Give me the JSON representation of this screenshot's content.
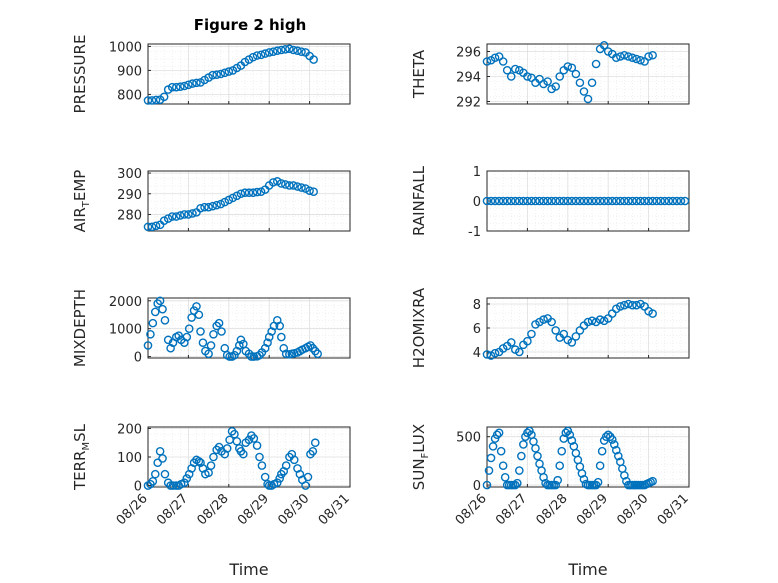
{
  "figure": {
    "title": "Figure 2 high"
  },
  "chart_data": [
    {
      "type": "scatter",
      "id": "pressure",
      "ylabel": {
        "base": "PRESSURE"
      },
      "ylim": [
        760,
        1010
      ],
      "yticks": [
        "800",
        "900",
        "1000"
      ],
      "ytick_values": [
        800,
        900,
        1000
      ],
      "xlim": [
        0,
        5
      ],
      "xticks": [],
      "series": [
        {
          "x": [
            0,
            0.1,
            0.2,
            0.3,
            0.4,
            0.5,
            0.6,
            0.7,
            0.8,
            0.9,
            1.0,
            1.1,
            1.2,
            1.3,
            1.4,
            1.5,
            1.6,
            1.7,
            1.8,
            1.9,
            2.0,
            2.1,
            2.2,
            2.3,
            2.4,
            2.5,
            2.6,
            2.7,
            2.8,
            2.9,
            3.0,
            3.1,
            3.2,
            3.3,
            3.4,
            3.5,
            3.6,
            3.7,
            3.8,
            3.9,
            4.0,
            4.1
          ],
          "y": [
            775,
            775,
            777,
            778,
            790,
            820,
            830,
            830,
            832,
            835,
            840,
            845,
            848,
            850,
            860,
            870,
            880,
            882,
            885,
            890,
            895,
            900,
            910,
            920,
            935,
            945,
            955,
            962,
            965,
            970,
            975,
            978,
            982,
            985,
            988,
            990,
            985,
            982,
            978,
            975,
            960,
            945
          ]
        }
      ],
      "grid": true,
      "minor_grid": true
    },
    {
      "type": "scatter",
      "id": "theta",
      "ylabel": {
        "base": "THETA"
      },
      "ylim": [
        291.8,
        296.6
      ],
      "yticks": [
        "292",
        "294",
        "296"
      ],
      "ytick_values": [
        292,
        294,
        296
      ],
      "xlim": [
        0,
        5
      ],
      "xticks": [],
      "series": [
        {
          "x": [
            0,
            0.1,
            0.2,
            0.3,
            0.4,
            0.5,
            0.6,
            0.7,
            0.8,
            0.9,
            1.0,
            1.1,
            1.2,
            1.3,
            1.4,
            1.5,
            1.6,
            1.7,
            1.8,
            1.9,
            2.0,
            2.1,
            2.2,
            2.3,
            2.4,
            2.5,
            2.6,
            2.7,
            2.8,
            2.9,
            3.0,
            3.1,
            3.2,
            3.3,
            3.4,
            3.5,
            3.6,
            3.7,
            3.8,
            3.9,
            4.0,
            4.1
          ],
          "y": [
            295.2,
            295.3,
            295.5,
            295.6,
            295.2,
            294.5,
            294.0,
            294.6,
            294.5,
            294.3,
            294.0,
            293.9,
            293.5,
            293.8,
            293.4,
            293.6,
            293.0,
            293.2,
            294.0,
            294.5,
            294.8,
            294.7,
            294.2,
            293.5,
            292.8,
            292.2,
            293.5,
            295.0,
            296.2,
            296.5,
            296.0,
            295.8,
            295.5,
            295.6,
            295.7,
            295.6,
            295.5,
            295.4,
            295.3,
            295.2,
            295.6,
            295.7
          ]
        }
      ],
      "grid": true,
      "minor_grid": true
    },
    {
      "type": "scatter",
      "id": "air_temp",
      "ylabel": {
        "base": "AIR",
        "sub": "T",
        "rest": "EMP"
      },
      "ylim": [
        272,
        301
      ],
      "yticks": [
        "280",
        "290",
        "300"
      ],
      "ytick_values": [
        280,
        290,
        300
      ],
      "xlim": [
        0,
        5
      ],
      "xticks": [],
      "series": [
        {
          "x": [
            0,
            0.1,
            0.2,
            0.3,
            0.4,
            0.5,
            0.6,
            0.7,
            0.8,
            0.9,
            1.0,
            1.1,
            1.2,
            1.3,
            1.4,
            1.5,
            1.6,
            1.7,
            1.8,
            1.9,
            2.0,
            2.1,
            2.2,
            2.3,
            2.4,
            2.5,
            2.6,
            2.7,
            2.8,
            2.9,
            3.0,
            3.1,
            3.2,
            3.3,
            3.4,
            3.5,
            3.6,
            3.7,
            3.8,
            3.9,
            4.0,
            4.1
          ],
          "y": [
            274,
            274,
            274.5,
            275,
            277,
            278,
            279,
            279,
            279.5,
            280,
            280,
            280.5,
            281,
            283,
            283.5,
            283.5,
            284,
            284.5,
            285,
            286,
            287,
            288,
            289,
            290,
            290.5,
            290.5,
            290.5,
            290.8,
            291,
            292,
            294,
            295.5,
            296,
            295,
            294.5,
            294,
            294,
            293.5,
            293,
            292.5,
            291.5,
            291
          ]
        }
      ],
      "grid": true,
      "minor_grid": true
    },
    {
      "type": "scatter",
      "id": "rainfall",
      "ylabel": {
        "base": "RAINFALL"
      },
      "ylim": [
        -1,
        1
      ],
      "yticks": [
        "-1",
        "0",
        "1"
      ],
      "ytick_values": [
        -1,
        0,
        1
      ],
      "xlim": [
        0,
        5
      ],
      "xticks": [],
      "series": [
        {
          "x": [
            0,
            0.1,
            0.2,
            0.3,
            0.4,
            0.5,
            0.6,
            0.7,
            0.8,
            0.9,
            1.0,
            1.1,
            1.2,
            1.3,
            1.4,
            1.5,
            1.6,
            1.7,
            1.8,
            1.9,
            2.0,
            2.1,
            2.2,
            2.3,
            2.4,
            2.5,
            2.6,
            2.7,
            2.8,
            2.9,
            3.0,
            3.1,
            3.2,
            3.3,
            3.4,
            3.5,
            3.6,
            3.7,
            3.8,
            3.9,
            4.0,
            4.1,
            4.2,
            4.3,
            4.4,
            4.5,
            4.6,
            4.7,
            4.8,
            4.9
          ],
          "y": [
            0,
            0,
            0,
            0,
            0,
            0,
            0,
            0,
            0,
            0,
            0,
            0,
            0,
            0,
            0,
            0,
            0,
            0,
            0,
            0,
            0,
            0,
            0,
            0,
            0,
            0,
            0,
            0,
            0,
            0,
            0,
            0,
            0,
            0,
            0,
            0,
            0,
            0,
            0,
            0,
            0,
            0,
            0,
            0,
            0,
            0,
            0,
            0,
            0,
            0
          ]
        }
      ],
      "grid": true,
      "minor_grid": true
    },
    {
      "type": "scatter",
      "id": "mixdepth",
      "ylabel": {
        "base": "MIXDEPTH"
      },
      "ylim": [
        -50,
        2100
      ],
      "yticks": [
        "0",
        "1000",
        "2000"
      ],
      "ytick_values": [
        0,
        1000,
        2000
      ],
      "xlim": [
        0,
        5
      ],
      "xticks": [],
      "series": [
        {
          "x": [
            0,
            0.06,
            0.12,
            0.18,
            0.24,
            0.3,
            0.36,
            0.42,
            0.5,
            0.56,
            0.62,
            0.7,
            0.76,
            0.82,
            0.9,
            0.96,
            1.02,
            1.08,
            1.14,
            1.2,
            1.26,
            1.3,
            1.36,
            1.42,
            1.5,
            1.56,
            1.62,
            1.7,
            1.76,
            1.82,
            1.9,
            1.96,
            2.02,
            2.08,
            2.14,
            2.2,
            2.26,
            2.3,
            2.36,
            2.42,
            2.5,
            2.56,
            2.62,
            2.7,
            2.76,
            2.82,
            2.9,
            2.96,
            3.0,
            3.06,
            3.12,
            3.2,
            3.26,
            3.3,
            3.36,
            3.42,
            3.5,
            3.56,
            3.62,
            3.7,
            3.76,
            3.82,
            3.9,
            3.96,
            4.02,
            4.08,
            4.14,
            4.2
          ],
          "y": [
            400,
            800,
            1200,
            1600,
            1900,
            2000,
            1700,
            1300,
            600,
            300,
            500,
            700,
            750,
            600,
            500,
            700,
            1000,
            1400,
            1650,
            1800,
            1500,
            900,
            500,
            200,
            100,
            400,
            800,
            1100,
            1200,
            900,
            300,
            50,
            0,
            0,
            50,
            200,
            400,
            600,
            450,
            200,
            100,
            0,
            0,
            10,
            50,
            150,
            300,
            500,
            700,
            900,
            1100,
            1300,
            1100,
            700,
            300,
            100,
            80,
            100,
            120,
            150,
            200,
            250,
            300,
            350,
            400,
            300,
            200,
            100
          ]
        }
      ],
      "grid": true,
      "minor_grid": true
    },
    {
      "type": "scatter",
      "id": "h2omixra",
      "ylabel": {
        "base": "H2OMIXRA"
      },
      "ylim": [
        3.5,
        8.5
      ],
      "yticks": [
        "4",
        "6",
        "8"
      ],
      "ytick_values": [
        4,
        6,
        8
      ],
      "xlim": [
        0,
        5
      ],
      "xticks": [],
      "series": [
        {
          "x": [
            0,
            0.1,
            0.2,
            0.3,
            0.4,
            0.5,
            0.6,
            0.7,
            0.8,
            0.9,
            1.0,
            1.1,
            1.2,
            1.3,
            1.4,
            1.5,
            1.6,
            1.7,
            1.8,
            1.9,
            2.0,
            2.1,
            2.2,
            2.3,
            2.4,
            2.5,
            2.6,
            2.7,
            2.8,
            2.9,
            3.0,
            3.1,
            3.2,
            3.3,
            3.4,
            3.5,
            3.6,
            3.7,
            3.8,
            3.9,
            4.0,
            4.1
          ],
          "y": [
            3.8,
            3.7,
            3.9,
            4.0,
            4.3,
            4.5,
            4.8,
            4.2,
            4.0,
            4.6,
            4.9,
            5.5,
            6.3,
            6.5,
            6.7,
            6.8,
            6.5,
            5.8,
            5.2,
            5.5,
            5.0,
            4.8,
            5.3,
            5.8,
            6.2,
            6.5,
            6.6,
            6.5,
            6.7,
            6.6,
            6.8,
            7.2,
            7.6,
            7.8,
            7.9,
            8.0,
            7.9,
            7.9,
            8.0,
            7.8,
            7.4,
            7.2
          ]
        }
      ],
      "grid": true,
      "minor_grid": true
    },
    {
      "type": "scatter",
      "id": "terr_msl",
      "ylabel": {
        "base": "TERR",
        "sub": "M",
        "rest": "SL"
      },
      "ylim": [
        -5,
        205
      ],
      "yticks": [
        "0",
        "100",
        "200"
      ],
      "ytick_values": [
        0,
        100,
        200
      ],
      "xlim": [
        0,
        5
      ],
      "xticks": [
        "08/26",
        "08/27",
        "08/28",
        "08/29",
        "08/30",
        "08/31"
      ],
      "xtick_values": [
        0,
        1,
        2,
        3,
        4,
        5
      ],
      "xlabel": "Time",
      "series": [
        {
          "x": [
            0,
            0.06,
            0.12,
            0.18,
            0.24,
            0.3,
            0.36,
            0.42,
            0.5,
            0.56,
            0.62,
            0.7,
            0.76,
            0.82,
            0.9,
            0.96,
            1.02,
            1.08,
            1.14,
            1.2,
            1.26,
            1.3,
            1.36,
            1.42,
            1.5,
            1.56,
            1.62,
            1.7,
            1.76,
            1.82,
            1.9,
            1.96,
            2.02,
            2.08,
            2.14,
            2.2,
            2.26,
            2.3,
            2.36,
            2.42,
            2.5,
            2.56,
            2.62,
            2.7,
            2.76,
            2.82,
            2.9,
            2.96,
            3.0,
            3.06,
            3.12,
            3.2,
            3.26,
            3.3,
            3.36,
            3.42,
            3.5,
            3.56,
            3.62,
            3.7,
            3.76,
            3.82,
            3.9,
            3.96,
            4.02,
            4.08,
            4.14
          ],
          "y": [
            0,
            5,
            15,
            40,
            80,
            120,
            95,
            40,
            10,
            0,
            0,
            0,
            0,
            5,
            10,
            25,
            40,
            60,
            80,
            90,
            85,
            80,
            60,
            40,
            45,
            70,
            100,
            125,
            135,
            120,
            110,
            130,
            160,
            190,
            180,
            155,
            130,
            120,
            110,
            150,
            160,
            175,
            165,
            140,
            100,
            70,
            30,
            5,
            0,
            0,
            5,
            10,
            25,
            40,
            50,
            70,
            100,
            110,
            90,
            60,
            40,
            20,
            0,
            30,
            110,
            120,
            150
          ]
        }
      ],
      "grid": true,
      "minor_grid": true
    },
    {
      "type": "scatter",
      "id": "sun_flux",
      "ylabel": {
        "base": "SUN",
        "sub": "F",
        "rest": "LUX"
      },
      "ylim": [
        -20,
        600
      ],
      "yticks": [
        "0",
        "500"
      ],
      "ytick_values": [
        0,
        500
      ],
      "xlim": [
        0,
        5
      ],
      "xticks": [
        "08/26",
        "08/27",
        "08/28",
        "08/29",
        "08/30",
        "08/31"
      ],
      "xtick_values": [
        0,
        1,
        2,
        3,
        4,
        5
      ],
      "xlabel": "Time",
      "series": [
        {
          "x": [
            0,
            0.05,
            0.1,
            0.15,
            0.2,
            0.25,
            0.3,
            0.35,
            0.4,
            0.45,
            0.5,
            0.55,
            0.6,
            0.65,
            0.7,
            0.75,
            0.8,
            0.85,
            0.9,
            0.95,
            1.0,
            1.05,
            1.1,
            1.15,
            1.2,
            1.25,
            1.3,
            1.35,
            1.4,
            1.45,
            1.5,
            1.55,
            1.6,
            1.65,
            1.7,
            1.75,
            1.8,
            1.85,
            1.9,
            1.95,
            2.0,
            2.05,
            2.1,
            2.15,
            2.2,
            2.25,
            2.3,
            2.35,
            2.4,
            2.45,
            2.5,
            2.55,
            2.6,
            2.65,
            2.7,
            2.75,
            2.8,
            2.85,
            2.9,
            2.95,
            3.0,
            3.05,
            3.1,
            3.15,
            3.2,
            3.25,
            3.3,
            3.35,
            3.4,
            3.45,
            3.5,
            3.55,
            3.6,
            3.65,
            3.7,
            3.75,
            3.8,
            3.85,
            3.9,
            3.95,
            4.0,
            4.05,
            4.1
          ],
          "y": [
            0,
            150,
            280,
            400,
            480,
            520,
            540,
            350,
            200,
            80,
            0,
            0,
            0,
            0,
            0,
            20,
            150,
            300,
            420,
            500,
            540,
            560,
            520,
            450,
            380,
            300,
            220,
            150,
            80,
            20,
            0,
            0,
            0,
            0,
            0,
            50,
            200,
            350,
            480,
            540,
            560,
            520,
            460,
            400,
            330,
            260,
            190,
            120,
            60,
            10,
            0,
            0,
            0,
            0,
            0,
            30,
            200,
            350,
            460,
            500,
            520,
            500,
            470,
            420,
            360,
            300,
            240,
            170,
            100,
            40,
            0,
            0,
            0,
            0,
            0,
            0,
            0,
            0,
            0,
            10,
            20,
            30,
            40
          ]
        }
      ],
      "grid": true,
      "minor_grid": true
    }
  ],
  "colors": {
    "marker": "#0072bd",
    "axis": "#262626",
    "grid": "#dfdfdf",
    "minor_grid": "#e6e6e6"
  }
}
